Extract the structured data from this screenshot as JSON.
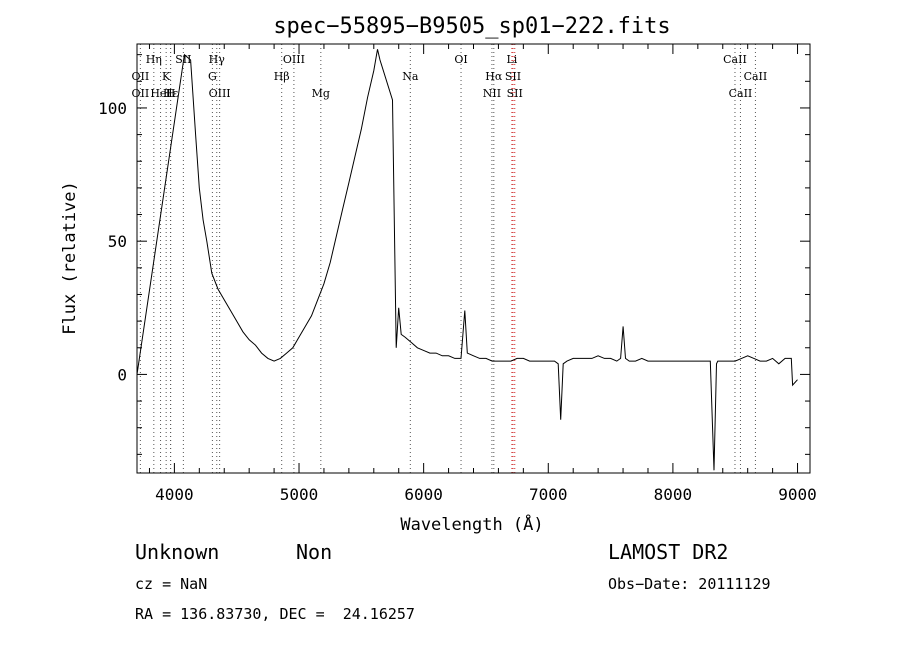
{
  "chart_data": {
    "type": "line",
    "title": "spec−55895−B9505_sp01−222.fits",
    "xlabel": "Wavelength (Å)",
    "ylabel": "Flux (relative)",
    "xlim": [
      3700,
      9100
    ],
    "ylim": [
      -37,
      124
    ],
    "x_ticks": [
      4000,
      5000,
      6000,
      7000,
      8000,
      9000
    ],
    "y_ticks": [
      0,
      50,
      100
    ],
    "grid": false,
    "line_color": "#000000",
    "marker_color": "#d03030",
    "series": [
      {
        "name": "",
        "x": [
          3700,
          4080,
          4130,
          4170,
          4200,
          4230,
          4260,
          4300,
          4350,
          4400,
          4450,
          4500,
          4550,
          4600,
          4650,
          4700,
          4750,
          4800,
          4850,
          4900,
          4950,
          5000,
          5050,
          5100,
          5150,
          5200,
          5250,
          5300,
          5350,
          5400,
          5450,
          5500,
          5550,
          5600,
          5630,
          5650,
          5750,
          5780,
          5800,
          5820,
          5850,
          5900,
          5950,
          6000,
          6050,
          6100,
          6150,
          6200,
          6250,
          6300,
          6330,
          6350,
          6400,
          6450,
          6500,
          6550,
          6600,
          6650,
          6700,
          6750,
          6800,
          6850,
          6900,
          6950,
          7000,
          7050,
          7080,
          7100,
          7120,
          7150,
          7200,
          7250,
          7300,
          7350,
          7400,
          7450,
          7500,
          7550,
          7580,
          7600,
          7620,
          7650,
          7700,
          7750,
          7800,
          7850,
          7900,
          7950,
          8000,
          8050,
          8100,
          8150,
          8200,
          8250,
          8300,
          8330,
          8350,
          8360,
          8380,
          8400,
          8450,
          8500,
          8550,
          8600,
          8650,
          8700,
          8750,
          8800,
          8850,
          8900,
          8950,
          8960,
          9000
        ],
        "y": [
          0,
          120,
          118,
          90,
          70,
          58,
          50,
          38,
          32,
          28,
          24,
          20,
          16,
          13,
          11,
          8,
          6,
          5,
          6,
          8,
          10,
          14,
          18,
          22,
          28,
          34,
          42,
          52,
          62,
          72,
          82,
          92,
          104,
          114,
          122,
          118,
          103,
          10,
          25,
          15,
          14,
          12,
          10,
          9,
          8,
          8,
          7,
          7,
          6,
          6,
          24,
          8,
          7,
          6,
          6,
          5,
          5,
          5,
          5,
          6,
          6,
          5,
          5,
          5,
          5,
          5,
          4,
          -17,
          4,
          5,
          6,
          6,
          6,
          6,
          7,
          6,
          6,
          5,
          6,
          18,
          6,
          5,
          5,
          6,
          5,
          5,
          5,
          5,
          5,
          5,
          5,
          5,
          5,
          5,
          5,
          -36,
          4,
          5,
          5,
          5,
          5,
          5,
          6,
          7,
          6,
          5,
          5,
          6,
          4,
          6,
          6,
          -4,
          -2
        ]
      }
    ],
    "lines": [
      {
        "label": "OII",
        "x": 3727,
        "row": 2
      },
      {
        "label": "OII",
        "x": 3727,
        "row": 3
      },
      {
        "label": "Hη",
        "x": 3835,
        "row": 1
      },
      {
        "label": "HeI",
        "x": 3889,
        "row": 3
      },
      {
        "label": "K",
        "x": 3934,
        "row": 2
      },
      {
        "label": "H",
        "x": 3969,
        "row": 3
      },
      {
        "label": "Hε",
        "x": 3970,
        "row": 3
      },
      {
        "label": "SII",
        "x": 4072,
        "row": 1
      },
      {
        "label": "Hγ",
        "x": 4340,
        "row": 1
      },
      {
        "label": "G",
        "x": 4305,
        "row": 2
      },
      {
        "label": "OIII",
        "x": 4363,
        "row": 3
      },
      {
        "label": "OIII",
        "x": 4959,
        "row": 1
      },
      {
        "label": "Hβ",
        "x": 4861,
        "row": 2
      },
      {
        "label": "Mg",
        "x": 5175,
        "row": 3
      },
      {
        "label": "Na",
        "x": 5893,
        "row": 2
      },
      {
        "label": "OI",
        "x": 6300,
        "row": 1
      },
      {
        "label": "Hα",
        "x": 6563,
        "row": 2
      },
      {
        "label": "NII",
        "x": 6548,
        "row": 3
      },
      {
        "label": "Li",
        "x": 6708,
        "row": 1
      },
      {
        "label": "SII",
        "x": 6717,
        "row": 2
      },
      {
        "label": "SII",
        "x": 6731,
        "row": 3
      },
      {
        "label": "CaII",
        "x": 8498,
        "row": 1
      },
      {
        "label": "CaII",
        "x": 8542,
        "row": 3
      },
      {
        "label": "CaII",
        "x": 8662,
        "row": 2
      }
    ]
  },
  "info": {
    "class": "Unknown",
    "subclass": "Non",
    "survey": "LAMOST DR2",
    "cz": "cz = NaN",
    "obs_date": "Obs−Date: 20111129",
    "coords": "RA = 136.83730, DEC =  24.16257"
  }
}
